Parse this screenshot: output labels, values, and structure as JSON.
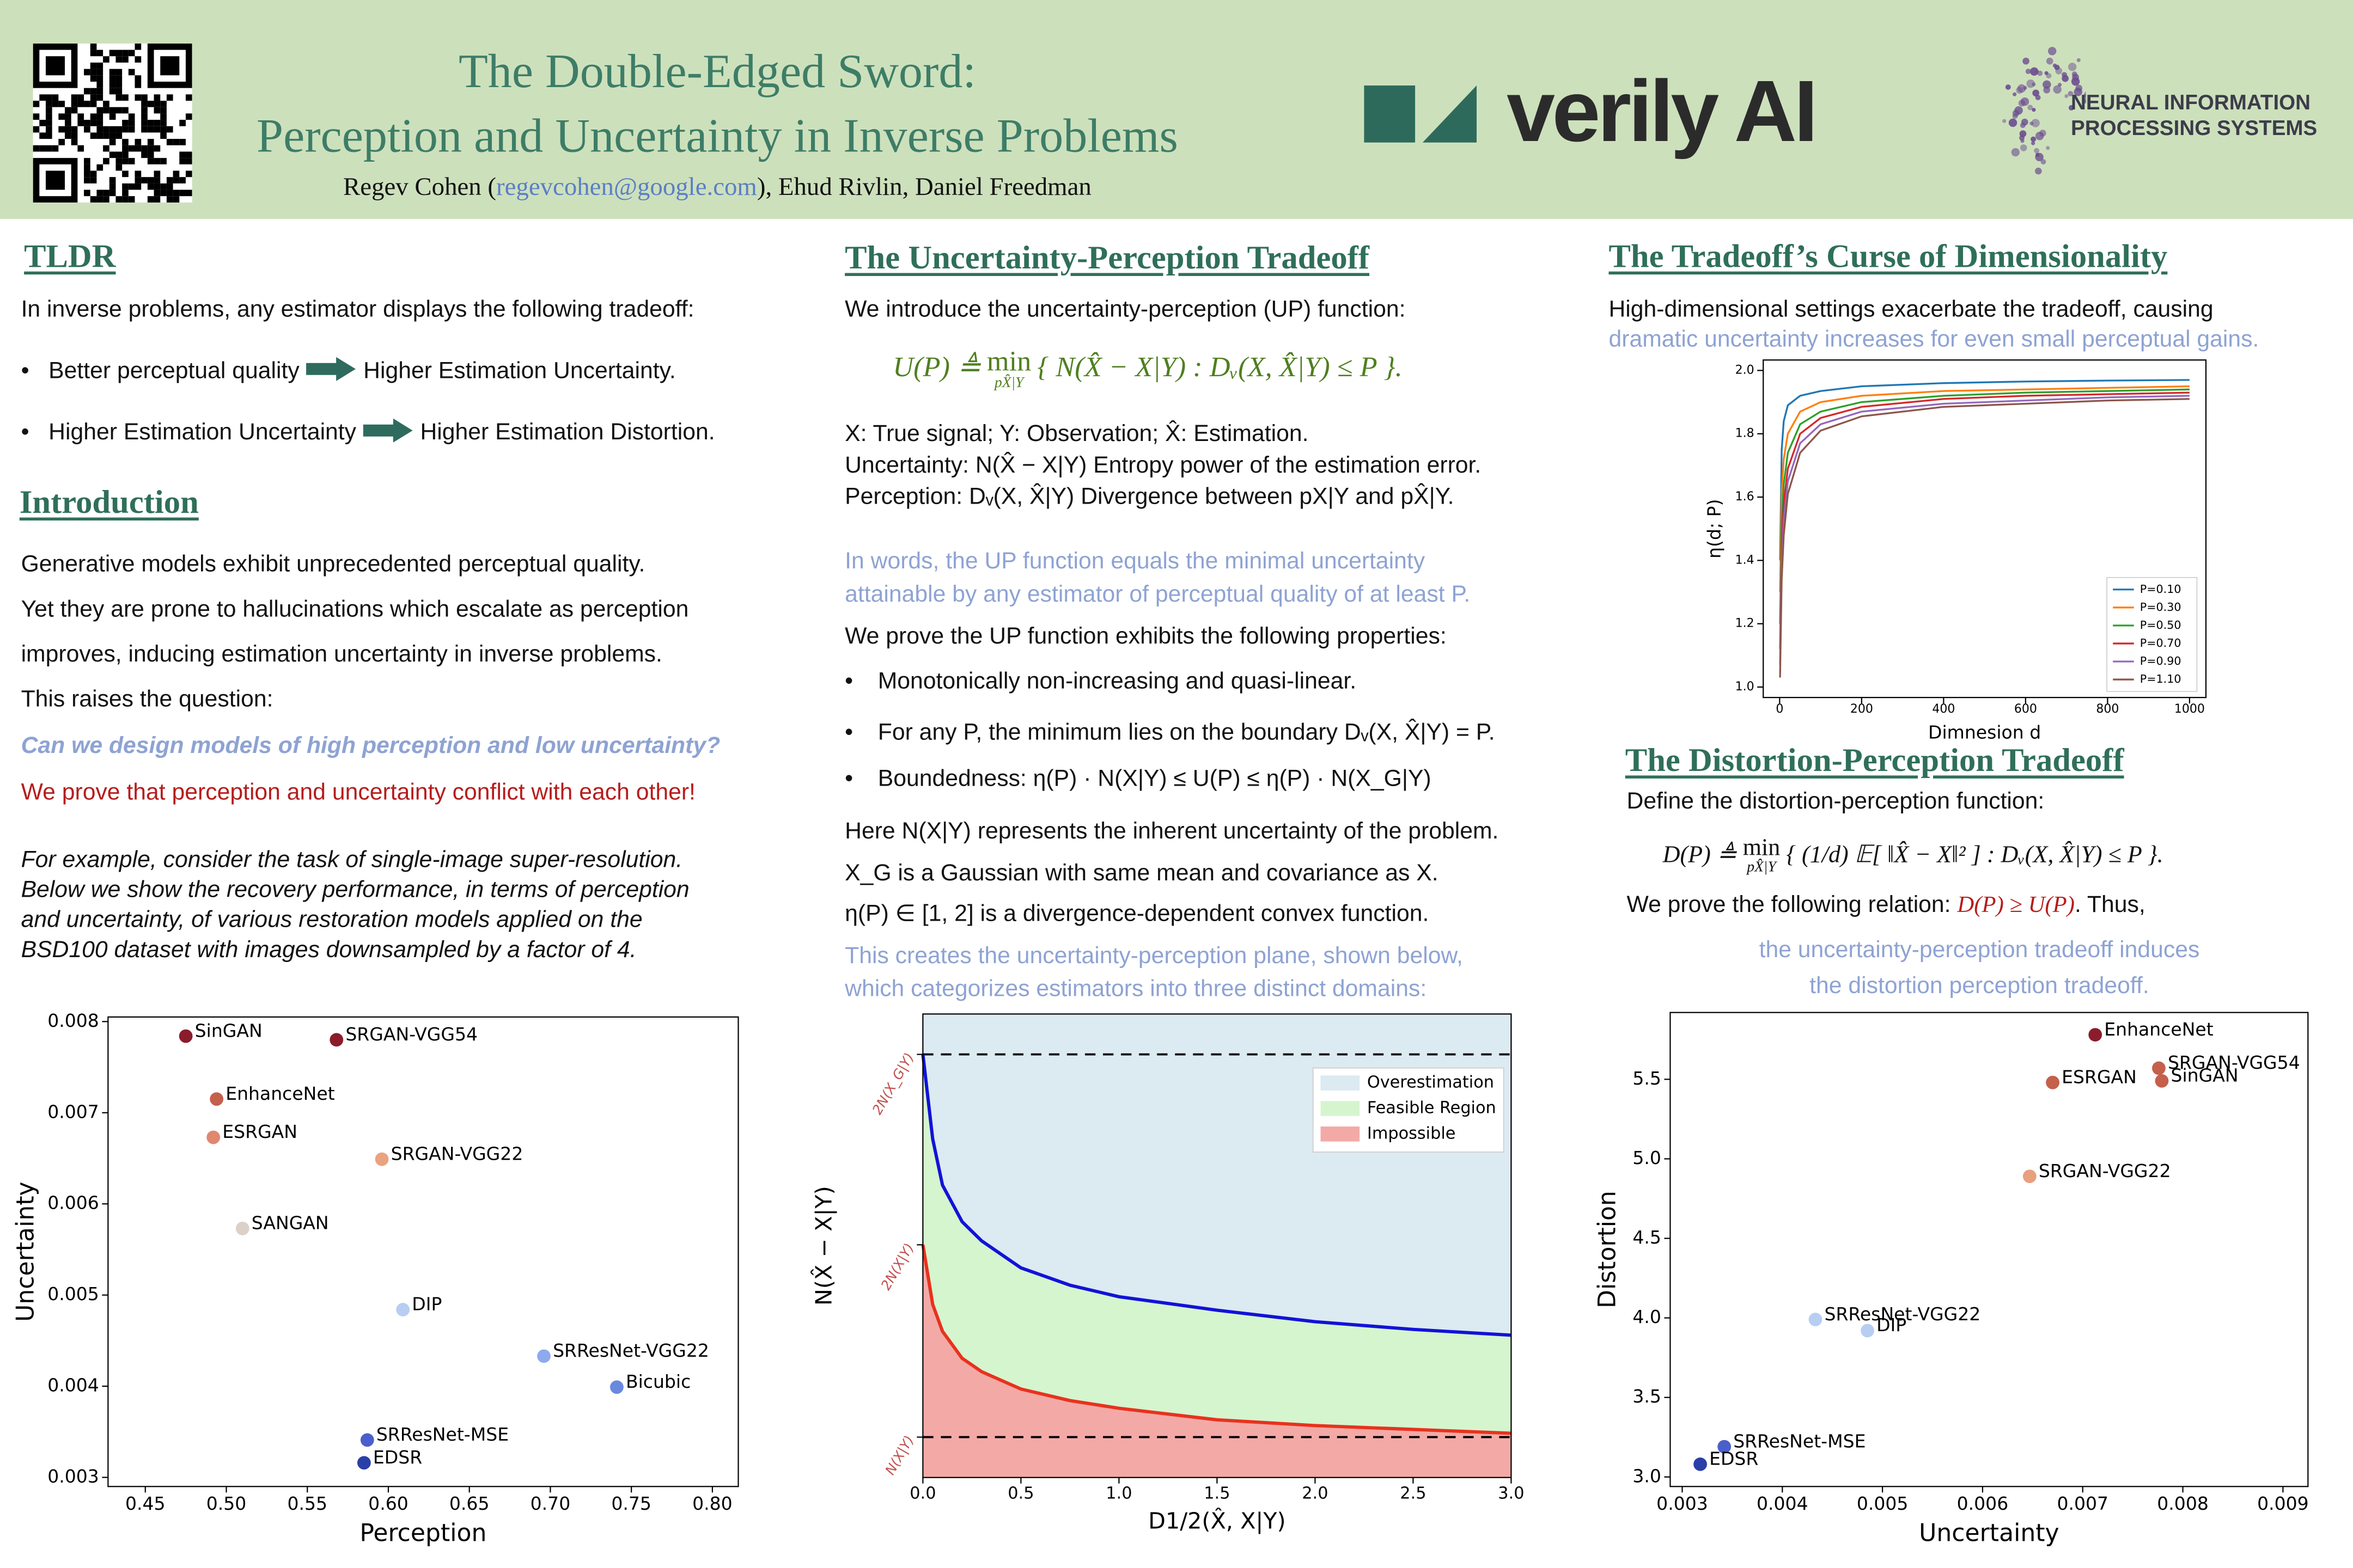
{
  "header": {
    "title": [
      "The Double-Edged Sword:",
      "Perception and Uncertainty in Inverse Problems"
    ],
    "authors": {
      "before": "Regev Cohen (",
      "email": "regevcohen@google.com",
      "after": "), Ehud Rivlin, Daniel Freedman"
    },
    "sponsor": "verily AI",
    "conference": [
      "NEURAL INFORMATION",
      "PROCESSING SYSTEMS"
    ]
  },
  "tldr": {
    "heading": "TLDR",
    "intro": "In inverse problems, any estimator displays the following tradeoff:",
    "bullets": [
      {
        "left": "Better perceptual quality",
        "right": "Higher Estimation Uncertainty."
      },
      {
        "left": "Higher Estimation Uncertainty",
        "right": "Higher Estimation Distortion."
      }
    ]
  },
  "introduction": {
    "heading": "Introduction",
    "lines": [
      "Generative models exhibit unprecedented perceptual quality.",
      "Yet they are prone to hallucinations which escalate as perception",
      "improves, inducing estimation uncertainty in inverse problems.",
      "This raises the question:"
    ],
    "question": "Can we design models of high perception and low uncertainty?",
    "claim": "We prove that perception and uncertainty conflict with each other!",
    "example": [
      "For example, consider the task of single-image super-resolution.",
      "Below we show the recovery performance, in terms of perception",
      "and uncertainty, of various restoration models applied on the",
      "BSD100 dataset with images downsampled by a factor of 4."
    ]
  },
  "up_tradeoff": {
    "heading": "The Uncertainty-Perception Tradeoff",
    "intro": "We introduce the uncertainty-perception (UP) function:",
    "formula": {
      "lhs": "U(P) ≜",
      "op": "min",
      "sub": "pX̂|Y",
      "rhs": "{ N(X̂ − X|Y)  :  Dᵥ(X, X̂|Y) ≤ P }."
    },
    "definitions": [
      "X: True signal; Y: Observation; X̂: Estimation.",
      "Uncertainty: N(X̂ − X|Y) Entropy power of the estimation error.",
      "Perception: Dᵥ(X, X̂|Y) Divergence between pX|Y and pX̂|Y."
    ],
    "words": [
      "In words, the UP function equals the minimal uncertainty",
      "attainable by any estimator of perceptual quality of at least P."
    ],
    "prove": "We prove the UP function exhibits the following properties:",
    "bullets": [
      "Monotonically non-increasing and quasi-linear.",
      "For any P, the minimum lies on the boundary Dᵥ(X, X̂|Y) = P.",
      "Boundedness: η(P) · N(X|Y) ≤ U(P) ≤ η(P) · N(X_G|Y)"
    ],
    "here": [
      "Here N(X|Y) represents the inherent uncertainty of the problem.",
      "X_G is a Gaussian with same mean and covariance as X.",
      "η(P) ∈ [1, 2] is a divergence-dependent convex function."
    ],
    "creates": [
      "This creates the uncertainty-perception plane, shown below,",
      "which categorizes estimators into three distinct domains:"
    ]
  },
  "dimensionality": {
    "heading": "The Tradeoff’s Curse of Dimensionality",
    "text": "High-dimensional settings exacerbate the tradeoff, causing",
    "highlight": "dramatic uncertainty increases for even small perceptual gains."
  },
  "dp_tradeoff": {
    "heading": "The Distortion-Perception Tradeoff",
    "define": "Define the distortion-perception function:",
    "formula": {
      "lhs": "D(P) ≜",
      "op": "min",
      "sub": "pX̂|Y",
      "rhs": "{ (1/d) 𝔼[ ‖X̂ − X‖² ]  :  Dᵥ(X, X̂|Y) ≤ P }."
    },
    "relation": {
      "before": "We prove the following relation: ",
      "highlight": "D(P) ≥ U(P)",
      "after": ". Thus,"
    },
    "conclusion": [
      "the uncertainty-perception tradeoff induces",
      "the distortion perception tradeoff."
    ]
  },
  "chart_data": [
    {
      "type": "scatter",
      "xlabel": "Perception",
      "ylabel": "Uncertainty",
      "labels": [
        "SinGAN",
        "SRGAN-VGG54",
        "EnhanceNet",
        "ESRGAN",
        "SRGAN-VGG22",
        "SANGAN",
        "DIP",
        "SRResNet-VGG22",
        "Bicubic",
        "SRResNet-MSE",
        "EDSR"
      ],
      "x": [
        0.475,
        0.568,
        0.494,
        0.492,
        0.596,
        0.51,
        0.609,
        0.696,
        0.741,
        0.587,
        0.585
      ],
      "values": [
        0.00784,
        0.0078,
        0.00715,
        0.00673,
        0.00649,
        0.00573,
        0.00484,
        0.00433,
        0.00399,
        0.00341,
        0.00316
      ],
      "colors": [
        "#8b1c2c",
        "#8b1c2c",
        "#c4604c",
        "#e0876f",
        "#eba27f",
        "#dcd0c8",
        "#b8cdf2",
        "#8eaaee",
        "#6a88dd",
        "#4a5fcc",
        "#2b3fa8"
      ],
      "xlim": [
        0.427,
        0.816
      ],
      "ylim": [
        0.0029,
        0.00805
      ],
      "xticks": [
        0.45,
        {
          "value": 0.5,
          "label": "0.50"
        },
        0.55,
        {
          "value": 0.6,
          "label": "0.60"
        },
        0.65,
        {
          "value": 0.7,
          "label": "0.70"
        },
        0.75,
        {
          "value": 0.8,
          "label": "0.80"
        }
      ],
      "yticks": [
        0.003,
        0.004,
        0.005,
        0.006,
        0.007,
        0.008
      ]
    },
    {
      "type": "area",
      "xlabel": "D1/2(X̂, X|Y)",
      "ylabel": "N(X̂ − X|Y)",
      "x": [
        0,
        0.05,
        0.1,
        0.2,
        0.3,
        0.5,
        0.75,
        1,
        1.5,
        2,
        2.5,
        3
      ],
      "curves": [
        {
          "color": "#e8321e",
          "values": [
            2.0,
            1.69,
            1.55,
            1.41,
            1.34,
            1.25,
            1.19,
            1.15,
            1.09,
            1.06,
            1.04,
            1.02
          ]
        },
        {
          "color": "#1212d8",
          "values": [
            2.99,
            2.55,
            2.31,
            2.12,
            2.02,
            1.88,
            1.79,
            1.73,
            1.66,
            1.6,
            1.56,
            1.53
          ]
        }
      ],
      "regions": [
        {
          "name": "Overestimation",
          "color": "#dceaf2"
        },
        {
          "name": "Feasible Region",
          "color": "#d5f5ce"
        },
        {
          "name": "Impossible",
          "color": "#f3aaa6"
        }
      ],
      "dashed_lines": [
        1,
        2.99
      ],
      "xlim": [
        0,
        3
      ],
      "ylim": [
        0.79,
        3.2
      ],
      "xticks": [
        {
          "value": 0,
          "label": "0.0"
        },
        0.5,
        {
          "value": 1,
          "label": "1.0"
        },
        1.5,
        {
          "value": 2,
          "label": "2.0"
        },
        2.5,
        {
          "value": 3,
          "label": "3.0"
        }
      ],
      "yticks": [
        {
          "value": 1,
          "label": "N(X|Y)"
        },
        {
          "value": 2,
          "label": "2N(X|Y)"
        },
        {
          "value": 2.99,
          "label": "2N(X_G|Y)"
        }
      ],
      "ytick_label_color": "#c0504d",
      "legend": "upper right"
    },
    {
      "type": "line",
      "xlabel": "Dimnesion d",
      "ylabel": "η(d; P)",
      "x": [
        1,
        5,
        10,
        20,
        50,
        100,
        200,
        400,
        600,
        800,
        1000
      ],
      "series": [
        {
          "name": "P=0.10",
          "color": "#1f77b4",
          "values": [
            1.4,
            1.75,
            1.84,
            1.89,
            1.92,
            1.935,
            1.95,
            1.96,
            1.965,
            1.968,
            1.97
          ]
        },
        {
          "name": "P=0.30",
          "color": "#ff7f0e",
          "values": [
            1.3,
            1.62,
            1.72,
            1.8,
            1.87,
            1.9,
            1.92,
            1.935,
            1.94,
            1.945,
            1.95
          ]
        },
        {
          "name": "P=0.50",
          "color": "#2ca02c",
          "values": [
            1.2,
            1.52,
            1.64,
            1.74,
            1.83,
            1.87,
            1.9,
            1.92,
            1.93,
            1.935,
            1.94
          ]
        },
        {
          "name": "P=0.70",
          "color": "#d62728",
          "values": [
            1.12,
            1.45,
            1.58,
            1.69,
            1.8,
            1.85,
            1.885,
            1.91,
            1.92,
            1.925,
            1.93
          ]
        },
        {
          "name": "P=0.90",
          "color": "#9467bd",
          "values": [
            1.07,
            1.39,
            1.53,
            1.65,
            1.77,
            1.83,
            1.87,
            1.895,
            1.905,
            1.915,
            1.92
          ]
        },
        {
          "name": "P=1.10",
          "color": "#8c564b",
          "values": [
            1.03,
            1.34,
            1.48,
            1.61,
            1.74,
            1.81,
            1.855,
            1.885,
            1.895,
            1.905,
            1.91
          ]
        }
      ],
      "xlim": [
        -40,
        1040
      ],
      "ylim": [
        0.967,
        2.033
      ],
      "xticks": [
        0,
        200,
        400,
        600,
        800,
        1000
      ],
      "yticks": [
        {
          "value": 1,
          "label": "1.0"
        },
        1.2,
        1.4,
        1.6,
        1.8,
        {
          "value": 2,
          "label": "2.0"
        }
      ],
      "legend": "lower right"
    },
    {
      "type": "scatter",
      "xlabel": "Uncertainty",
      "ylabel": "Distortion",
      "labels": [
        "EnhanceNet",
        "SRGAN-VGG54",
        "SinGAN",
        "ESRGAN",
        "SRGAN-VGG22",
        "SRResNet-VGG22",
        "DIP",
        "SRResNet-MSE",
        "EDSR"
      ],
      "x": [
        0.007125,
        0.00776,
        0.00779,
        0.0067,
        0.00647,
        0.00433,
        0.00485,
        0.00342,
        0.00318
      ],
      "values": [
        5.78,
        5.57,
        5.49,
        5.48,
        4.89,
        3.99,
        3.92,
        3.19,
        3.08
      ],
      "colors": [
        "#8b1c2c",
        "#c4604c",
        "#c4604c",
        "#c4604c",
        "#e8a07f",
        "#b8cdf2",
        "#b8cdf2",
        "#4a5fcc",
        "#2b3fa8"
      ],
      "xlim": [
        0.00288,
        0.00925
      ],
      "ylim": [
        2.94,
        5.92
      ],
      "xticks": [
        0.003,
        0.004,
        0.005,
        0.006,
        0.007,
        0.008,
        0.009
      ],
      "yticks": [
        {
          "value": 3,
          "label": "3.0"
        },
        3.5,
        {
          "value": 4,
          "label": "4.0"
        },
        4.5,
        {
          "value": 5,
          "label": "5.0"
        },
        5.5
      ]
    }
  ]
}
